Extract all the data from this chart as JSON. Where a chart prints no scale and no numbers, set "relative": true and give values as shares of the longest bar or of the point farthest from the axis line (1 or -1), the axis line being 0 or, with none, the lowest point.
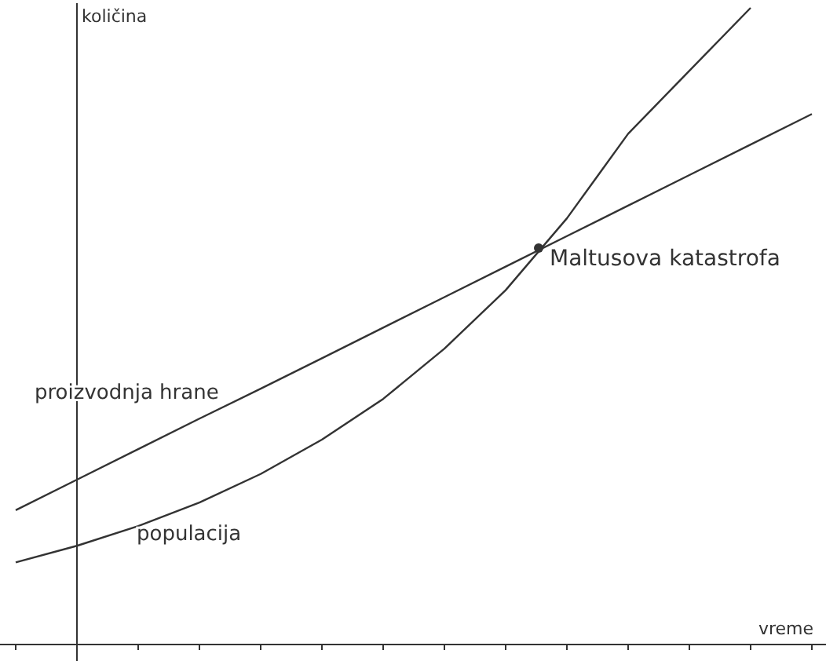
{
  "chart_data": {
    "type": "line",
    "relative": true,
    "xlabel": "vreme",
    "ylabel": "količina",
    "categories": [
      null,
      null,
      null,
      null,
      null,
      null,
      null,
      null,
      null,
      null,
      null,
      null,
      null,
      null
    ],
    "series": [
      {
        "name": "proizvodnja hrane",
        "color": "#333333",
        "values": [
          0.21,
          0.258,
          0.306,
          0.354,
          0.401,
          0.449,
          0.497,
          0.545,
          0.593,
          0.641,
          0.689,
          0.737,
          0.785,
          0.833
        ]
      },
      {
        "name": "populacija",
        "color": "#333333",
        "values": [
          0.128,
          0.154,
          0.185,
          0.222,
          0.267,
          0.321,
          0.385,
          0.464,
          0.556,
          0.669,
          0.802,
          0.901,
          1,
          null
        ]
      }
    ],
    "annotations": [
      "Maltusova katastrofa"
    ],
    "grid": false,
    "legend": false,
    "marker": "none",
    "line_style": "solid"
  }
}
